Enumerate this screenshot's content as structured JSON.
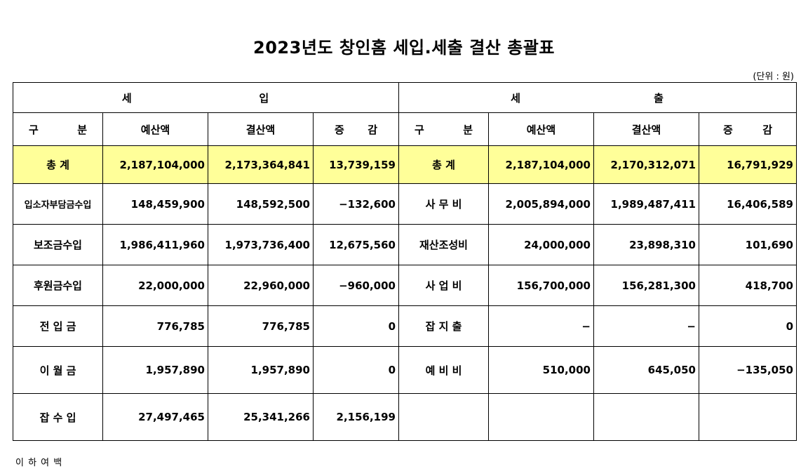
{
  "title": "2023년도 창인홈 세입.세출 결산 총괄표",
  "unit": "(단위 : 원)",
  "revenue_section": [
    "세",
    "입"
  ],
  "expense_section": [
    "세",
    "출"
  ],
  "headers": {
    "category": [
      "구",
      "분"
    ],
    "budget": "예산액",
    "settlement": "결산액",
    "diff": [
      "증",
      "감"
    ]
  },
  "total": {
    "rev_label": "총 계",
    "rev": [
      "2,187,104,000",
      "2,173,364,841",
      "13,739,159"
    ],
    "exp_label": "총 계",
    "exp": [
      "2,187,104,000",
      "2,170,312,071",
      "16,791,929"
    ]
  },
  "rows": [
    {
      "rev_label": "입소자부담금수입",
      "rev": [
        "148,459,900",
        "148,592,500",
        "−132,600"
      ],
      "exp_label": "사 무 비",
      "exp": [
        "2,005,894,000",
        "1,989,487,411",
        "16,406,589"
      ]
    },
    {
      "rev_label": "보조금수입",
      "rev": [
        "1,986,411,960",
        "1,973,736,400",
        "12,675,560"
      ],
      "exp_label": "재산조성비",
      "exp": [
        "24,000,000",
        "23,898,310",
        "101,690"
      ]
    },
    {
      "rev_label": "후원금수입",
      "rev": [
        "22,000,000",
        "22,960,000",
        "−960,000"
      ],
      "exp_label": "사 업 비",
      "exp": [
        "156,700,000",
        "156,281,300",
        "418,700"
      ]
    },
    {
      "rev_label": "전 입 금",
      "rev": [
        "776,785",
        "776,785",
        "0"
      ],
      "exp_label": "잡 지 출",
      "exp": [
        "−",
        "−",
        "0"
      ]
    },
    {
      "rev_label": "이 월 금",
      "rev": [
        "1,957,890",
        "1,957,890",
        "0"
      ],
      "exp_label": "예 비 비",
      "exp": [
        "510,000",
        "645,050",
        "−135,050"
      ]
    },
    {
      "rev_label": "잡 수 입",
      "rev": [
        "27,497,465",
        "25,341,266",
        "2,156,199"
      ],
      "exp_label": "",
      "exp": [
        "",
        "",
        ""
      ]
    }
  ],
  "footer": "이 하 여 백"
}
